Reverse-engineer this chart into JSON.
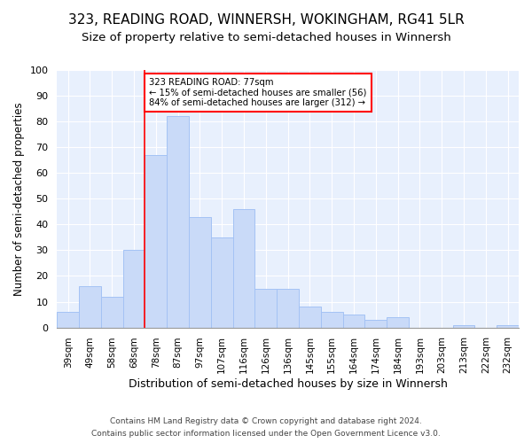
{
  "title": "323, READING ROAD, WINNERSH, WOKINGHAM, RG41 5LR",
  "subtitle": "Size of property relative to semi-detached houses in Winnersh",
  "xlabel": "Distribution of semi-detached houses by size in Winnersh",
  "ylabel": "Number of semi-detached properties",
  "categories": [
    "39sqm",
    "49sqm",
    "58sqm",
    "68sqm",
    "78sqm",
    "87sqm",
    "97sqm",
    "107sqm",
    "116sqm",
    "126sqm",
    "136sqm",
    "145sqm",
    "155sqm",
    "164sqm",
    "174sqm",
    "184sqm",
    "193sqm",
    "203sqm",
    "213sqm",
    "222sqm",
    "232sqm"
  ],
  "values": [
    6,
    16,
    12,
    30,
    67,
    82,
    43,
    35,
    46,
    15,
    15,
    8,
    6,
    5,
    3,
    4,
    0,
    0,
    1,
    0,
    1
  ],
  "bar_color": "#c9daf8",
  "bar_edge_color": "#a4c2f4",
  "vline_color": "red",
  "annotation_text": "323 READING ROAD: 77sqm\n← 15% of semi-detached houses are smaller (56)\n84% of semi-detached houses are larger (312) →",
  "annotation_box_color": "white",
  "annotation_box_edge": "red",
  "ylim": [
    0,
    100
  ],
  "yticks": [
    0,
    10,
    20,
    30,
    40,
    50,
    60,
    70,
    80,
    90,
    100
  ],
  "footer1": "Contains HM Land Registry data © Crown copyright and database right 2024.",
  "footer2": "Contains public sector information licensed under the Open Government Licence v3.0.",
  "bg_color": "#e8f0fd",
  "grid_color": "white",
  "title_fontsize": 11,
  "subtitle_fontsize": 9.5
}
